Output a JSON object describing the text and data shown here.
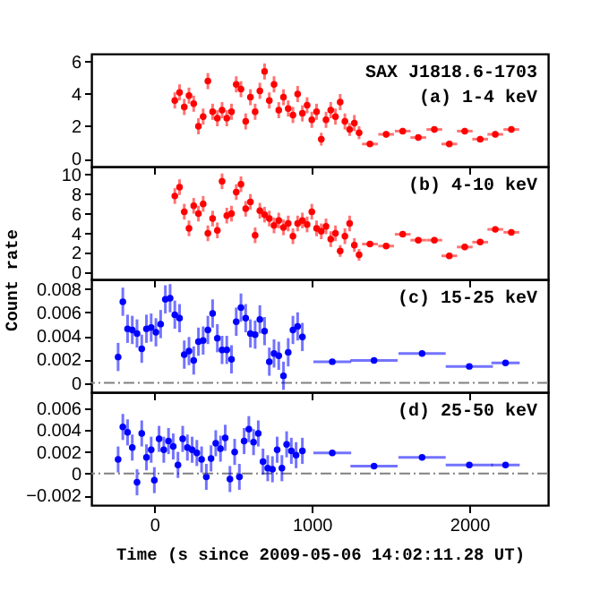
{
  "chart_data": [
    {
      "type": "scatter",
      "annotations": [
        "SAX J1818.6-1703",
        "(a) 1-4 keV"
      ],
      "xlim": [
        -400,
        2500
      ],
      "xticks": [
        0,
        1000,
        2000
      ],
      "ylim": [
        -0.5,
        6.5
      ],
      "yticks": [
        0,
        2,
        4,
        6
      ],
      "tick_labels": "y",
      "marker": "circle",
      "series": [
        {
          "color": "#ff0000",
          "x": [
            130,
            160,
            190,
            220,
            250,
            280,
            310,
            340,
            370,
            400,
            430,
            460,
            490,
            520,
            550,
            580,
            610,
            640,
            670,
            700,
            730,
            760,
            790,
            820,
            850,
            880,
            910,
            940,
            970,
            1000,
            1030,
            1060,
            1090,
            1120,
            1150,
            1180,
            1210,
            1240,
            1270,
            1300
          ],
          "values": [
            3.6,
            4.1,
            3.2,
            3.9,
            3.4,
            2.0,
            2.6,
            4.8,
            2.9,
            2.5,
            3.0,
            2.5,
            2.9,
            4.6,
            4.3,
            2.3,
            3.8,
            2.9,
            4.2,
            5.4,
            3.6,
            4.6,
            3.0,
            3.8,
            3.1,
            2.7,
            4.0,
            2.8,
            3.3,
            2.4,
            2.9,
            1.2,
            2.4,
            3.0,
            2.6,
            3.5,
            2.3,
            1.8,
            2.2,
            1.6
          ],
          "errors": [
            0.5,
            0.5,
            0.5,
            0.5,
            0.5,
            0.5,
            0.5,
            0.5,
            0.5,
            0.5,
            0.5,
            0.5,
            0.5,
            0.5,
            0.5,
            0.5,
            0.5,
            0.5,
            0.5,
            0.5,
            0.5,
            0.5,
            0.5,
            0.5,
            0.5,
            0.5,
            0.5,
            0.5,
            0.5,
            0.5,
            0.5,
            0.4,
            0.5,
            0.5,
            0.5,
            0.5,
            0.5,
            0.4,
            0.5,
            0.4
          ]
        },
        {
          "color": "#ff0000",
          "x": [
            1369,
            1472,
            1577,
            1676,
            1778,
            1873,
            1971,
            2069,
            2165,
            2267
          ],
          "values": [
            0.9,
            1.5,
            1.7,
            1.3,
            1.8,
            0.9,
            1.7,
            1.2,
            1.5,
            1.8
          ],
          "errors": [
            0.15,
            0.2,
            0.2,
            0.2,
            0.2,
            0.15,
            0.2,
            0.2,
            0.2,
            0.2
          ],
          "xerrors": [
            50,
            50,
            50,
            50,
            50,
            50,
            50,
            50,
            50,
            50
          ]
        }
      ]
    },
    {
      "type": "scatter",
      "ylabel": "Count rate",
      "annotations": [
        "(b) 4-10 keV"
      ],
      "xlim": [
        -400,
        2500
      ],
      "xticks": [
        0,
        1000,
        2000
      ],
      "ylim": [
        -0.7,
        10.8
      ],
      "yticks": [
        0,
        2,
        4,
        6,
        8,
        10
      ],
      "tick_labels": "y",
      "marker": "circle",
      "series": [
        {
          "color": "#ff0000",
          "x": [
            130,
            160,
            190,
            220,
            250,
            280,
            310,
            340,
            370,
            400,
            430,
            460,
            490,
            520,
            550,
            580,
            610,
            640,
            670,
            700,
            730,
            760,
            790,
            820,
            850,
            880,
            910,
            940,
            970,
            1000,
            1030,
            1060,
            1090,
            1120,
            1150,
            1180,
            1210,
            1240,
            1270,
            1300
          ],
          "values": [
            7.8,
            8.7,
            6.2,
            4.5,
            6.8,
            6.0,
            7.0,
            4.0,
            5.5,
            4.3,
            9.3,
            5.8,
            6.0,
            8.2,
            9.0,
            6.5,
            7.2,
            3.8,
            6.3,
            5.9,
            5.5,
            4.8,
            5.3,
            4.6,
            5.0,
            3.7,
            5.0,
            5.3,
            4.9,
            6.2,
            4.5,
            4.2,
            4.7,
            3.4,
            4.0,
            2.2,
            3.7,
            5.0,
            2.8,
            1.8
          ],
          "errors": [
            0.8,
            0.8,
            0.8,
            0.8,
            0.8,
            0.8,
            0.8,
            0.8,
            0.8,
            0.8,
            0.8,
            0.8,
            0.8,
            0.8,
            0.8,
            0.8,
            0.8,
            0.8,
            0.8,
            0.8,
            0.8,
            0.8,
            0.8,
            0.8,
            0.8,
            0.8,
            0.8,
            0.8,
            0.8,
            0.8,
            0.8,
            0.8,
            0.8,
            0.8,
            0.8,
            0.6,
            0.8,
            0.8,
            0.7,
            0.6
          ]
        },
        {
          "color": "#ff0000",
          "x": [
            1369,
            1472,
            1577,
            1676,
            1778,
            1873,
            1971,
            2069,
            2165,
            2267
          ],
          "values": [
            2.9,
            2.7,
            3.9,
            3.3,
            3.3,
            1.7,
            2.6,
            3.1,
            4.4,
            4.1
          ],
          "errors": [
            0.3,
            0.3,
            0.3,
            0.3,
            0.3,
            0.3,
            0.3,
            0.3,
            0.3,
            0.3
          ],
          "xerrors": [
            50,
            50,
            50,
            50,
            50,
            50,
            50,
            50,
            50,
            50
          ]
        }
      ]
    },
    {
      "type": "scatter",
      "annotations": [
        "(c) 15-25 keV"
      ],
      "xlim": [
        -400,
        2500
      ],
      "xticks": [
        0,
        1000,
        2000
      ],
      "ylim": [
        -0.0008,
        0.0088
      ],
      "yticks": [
        0,
        0.002,
        0.004,
        0.006,
        0.008
      ],
      "tick_labels": "y",
      "marker": "circle",
      "ref_lines": [
        {
          "axis": "y",
          "value": 0,
          "line_style": "dashed",
          "color": "#808080"
        }
      ],
      "series": [
        {
          "color": "#0000ff",
          "x": [
            -230,
            -200,
            -170,
            -140,
            -110,
            -80,
            -50,
            -20,
            10,
            40,
            70,
            100,
            130,
            160,
            190,
            220,
            250,
            280,
            310,
            340,
            370,
            400,
            430,
            460,
            490,
            520,
            550,
            580,
            610,
            640,
            670,
            700,
            730,
            760,
            790,
            820,
            850,
            880,
            910,
            940
          ],
          "values": [
            0.0022,
            0.0069,
            0.0046,
            0.0045,
            0.0042,
            0.0029,
            0.0046,
            0.0047,
            0.0043,
            0.005,
            0.0071,
            0.0072,
            0.0058,
            0.0055,
            0.0024,
            0.0027,
            0.0019,
            0.0035,
            0.0036,
            0.0045,
            0.0059,
            0.0038,
            0.0028,
            0.0028,
            0.002,
            0.0052,
            0.0064,
            0.0055,
            0.0042,
            0.0041,
            0.0054,
            0.0044,
            0.0018,
            0.0025,
            0.0023,
            0.0006,
            0.0026,
            0.0045,
            0.0048,
            0.0039
          ],
          "errors": [
            0.0012,
            0.0012,
            0.0012,
            0.0012,
            0.0012,
            0.0012,
            0.0012,
            0.0012,
            0.0012,
            0.0012,
            0.0012,
            0.0012,
            0.0012,
            0.0012,
            0.0012,
            0.0012,
            0.0012,
            0.0012,
            0.0012,
            0.0012,
            0.0012,
            0.0012,
            0.0012,
            0.0012,
            0.0012,
            0.0012,
            0.0012,
            0.0012,
            0.0012,
            0.0012,
            0.0012,
            0.0012,
            0.0012,
            0.0012,
            0.0012,
            0.0012,
            0.0012,
            0.0012,
            0.0012,
            0.0012
          ]
        },
        {
          "color": "#0000ff",
          "x": [
            1130,
            1395,
            1700,
            2000,
            2230
          ],
          "values": [
            0.0018,
            0.0019,
            0.0025,
            0.0014,
            0.0017
          ],
          "errors": [
            0.0002,
            0.0002,
            0.0002,
            0.0002,
            0.0002
          ],
          "xerrors": [
            120,
            150,
            150,
            150,
            90
          ]
        }
      ]
    },
    {
      "type": "scatter",
      "xlabel": "Time (s since 2009-05-06 14:02:11.28 UT)",
      "annotations": [
        "(d) 25-50  keV"
      ],
      "xlim": [
        -400,
        2500
      ],
      "xticks": [
        0,
        1000,
        2000
      ],
      "ylim": [
        -0.0029,
        0.0075
      ],
      "yticks": [
        -0.002,
        0,
        0.002,
        0.004,
        0.006
      ],
      "marker": "circle",
      "ref_lines": [
        {
          "axis": "y",
          "value": 0,
          "line_style": "dashed",
          "color": "#808080"
        }
      ],
      "series": [
        {
          "color": "#0000ff",
          "x": [
            -230,
            -200,
            -170,
            -140,
            -110,
            -80,
            -50,
            -20,
            0,
            30,
            60,
            90,
            120,
            150,
            180,
            210,
            240,
            270,
            300,
            330,
            360,
            390,
            420,
            450,
            480,
            510,
            540,
            570,
            600,
            630,
            660,
            690,
            720,
            750,
            780,
            810,
            840,
            870,
            900,
            940
          ],
          "values": [
            0.0013,
            0.0043,
            0.0038,
            0.0024,
            -0.0008,
            0.0037,
            0.0015,
            0.0022,
            -0.0006,
            0.0032,
            0.0022,
            0.003,
            0.0025,
            0.0008,
            0.0032,
            0.0024,
            0.0022,
            0.0019,
            0.0013,
            -0.0003,
            0.0014,
            0.0028,
            0.0023,
            0.0033,
            -0.0005,
            0.002,
            -0.0003,
            0.003,
            0.0041,
            0.0029,
            0.0037,
            0.0011,
            0.0005,
            0.0004,
            0.0022,
            0.0005,
            0.0027,
            0.0021,
            0.0017,
            0.0021
          ],
          "errors": [
            0.0012,
            0.0012,
            0.0012,
            0.0012,
            0.0012,
            0.0012,
            0.0012,
            0.0012,
            0.0012,
            0.0012,
            0.0012,
            0.0012,
            0.0012,
            0.0012,
            0.0012,
            0.0012,
            0.0012,
            0.0012,
            0.0012,
            0.0012,
            0.0012,
            0.0012,
            0.0012,
            0.0012,
            0.0012,
            0.0012,
            0.0012,
            0.0012,
            0.0012,
            0.0012,
            0.0012,
            0.0012,
            0.0012,
            0.0012,
            0.0012,
            0.0012,
            0.0012,
            0.0012,
            0.0012,
            0.0012
          ]
        },
        {
          "color": "#0000ff",
          "x": [
            1130,
            1395,
            1700,
            2000,
            2230
          ],
          "values": [
            0.0019,
            0.0007,
            0.0015,
            0.0008,
            0.0008
          ],
          "errors": [
            0.0002,
            0.0002,
            0.0002,
            0.0002,
            0.0002
          ],
          "xerrors": [
            120,
            150,
            150,
            150,
            90
          ]
        }
      ]
    }
  ]
}
